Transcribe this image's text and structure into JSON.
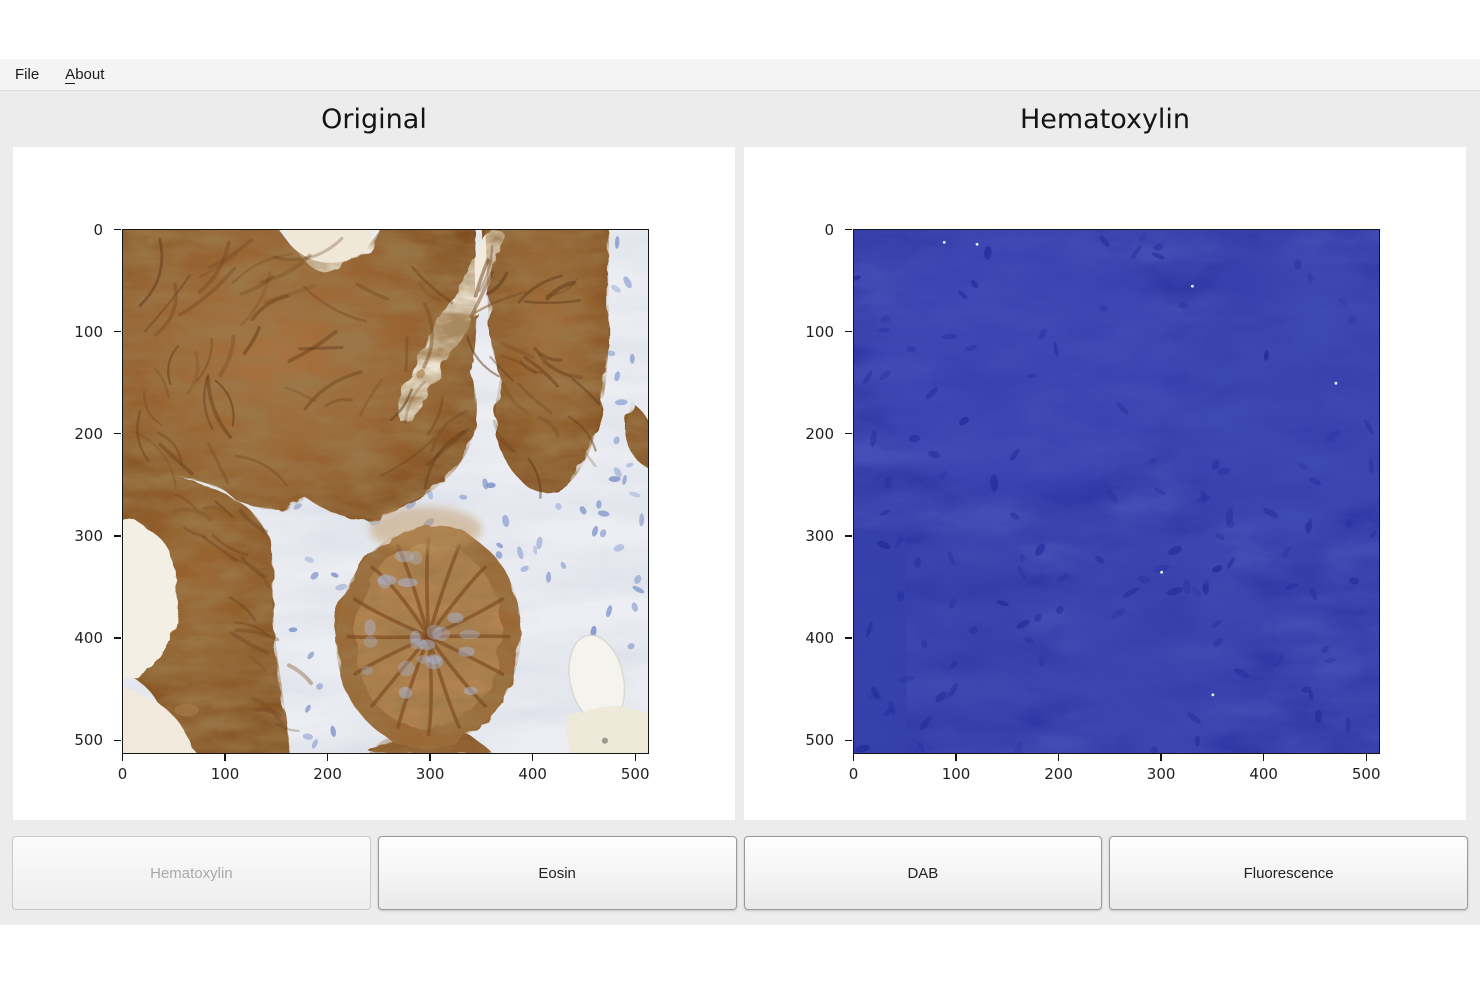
{
  "menu": {
    "file_label": "File",
    "about_accel": "A",
    "about_rest": "bout"
  },
  "figures": [
    {
      "title": "Original",
      "x_ticks": [
        0,
        100,
        200,
        300,
        400,
        500
      ],
      "y_ticks": [
        0,
        100,
        200,
        300,
        400,
        500
      ],
      "image_alt": "Immunohistochemistry stained tissue: brown DAB-stained glands with pale stroma and blue hematoxylin nuclei"
    },
    {
      "title": "Hematoxylin",
      "x_ticks": [
        0,
        100,
        200,
        300,
        400,
        500
      ],
      "y_ticks": [
        0,
        100,
        200,
        300,
        400,
        500
      ],
      "image_alt": "Separated hematoxylin stain channel rendered in dark blue"
    }
  ],
  "buttons": [
    {
      "label": "Hematoxylin",
      "enabled": false
    },
    {
      "label": "Eosin",
      "enabled": true
    },
    {
      "label": "DAB",
      "enabled": true
    },
    {
      "label": "Fluorescence",
      "enabled": true
    }
  ],
  "colors": {
    "app_background": "#ececec",
    "menubar_background": "#f4f4f4",
    "canvas_background": "#ffffff",
    "hematoxylin_blue": "#3038a6",
    "dab_brown": "#8a5a2b",
    "stroma_light": "#eceef3",
    "disabled_text": "#a9a9a9"
  }
}
